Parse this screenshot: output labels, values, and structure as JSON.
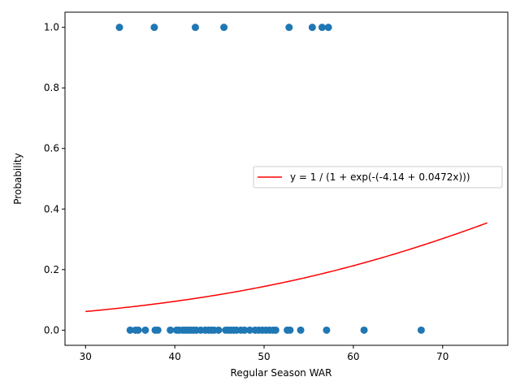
{
  "chart_data": {
    "type": "scatter",
    "title": "",
    "xlabel": "Regular Season WAR",
    "ylabel": "Probability",
    "xlim": [
      27.7,
      77.3
    ],
    "ylim": [
      -0.05,
      1.05
    ],
    "xticks": [
      30,
      40,
      50,
      60,
      70
    ],
    "yticks": [
      0.0,
      0.2,
      0.4,
      0.6,
      0.8,
      1.0
    ],
    "xtick_labels": [
      "30",
      "40",
      "50",
      "60",
      "70"
    ],
    "ytick_labels": [
      "0.0",
      "0.2",
      "0.4",
      "0.6",
      "0.8",
      "1.0"
    ],
    "grid": false,
    "legend_position": "center-right",
    "colors": {
      "points": "#1f77b4",
      "curve": "#ff0000"
    },
    "series": [
      {
        "type": "scatter",
        "points": [
          [
            33.8,
            1
          ],
          [
            37.7,
            1
          ],
          [
            42.3,
            1
          ],
          [
            45.5,
            1
          ],
          [
            52.8,
            1
          ],
          [
            55.4,
            1
          ],
          [
            56.5,
            1
          ],
          [
            57.2,
            1
          ],
          [
            35.0,
            0
          ],
          [
            35.6,
            0
          ],
          [
            35.9,
            0
          ],
          [
            36.7,
            0
          ],
          [
            37.8,
            0
          ],
          [
            38.1,
            0
          ],
          [
            39.5,
            0
          ],
          [
            40.2,
            0
          ],
          [
            40.5,
            0
          ],
          [
            40.9,
            0
          ],
          [
            41.2,
            0
          ],
          [
            41.5,
            0
          ],
          [
            41.8,
            0
          ],
          [
            42.1,
            0
          ],
          [
            42.4,
            0
          ],
          [
            42.9,
            0
          ],
          [
            43.4,
            0
          ],
          [
            43.8,
            0
          ],
          [
            44.1,
            0
          ],
          [
            44.4,
            0
          ],
          [
            44.9,
            0
          ],
          [
            45.7,
            0
          ],
          [
            46.0,
            0
          ],
          [
            46.3,
            0
          ],
          [
            46.6,
            0
          ],
          [
            46.9,
            0
          ],
          [
            47.4,
            0
          ],
          [
            47.8,
            0
          ],
          [
            48.4,
            0
          ],
          [
            49.0,
            0
          ],
          [
            49.4,
            0
          ],
          [
            49.8,
            0
          ],
          [
            50.2,
            0
          ],
          [
            50.6,
            0
          ],
          [
            51.0,
            0
          ],
          [
            51.3,
            0
          ],
          [
            52.6,
            0
          ],
          [
            52.9,
            0
          ],
          [
            54.1,
            0
          ],
          [
            57.0,
            0
          ],
          [
            61.2,
            0
          ],
          [
            67.6,
            0
          ]
        ]
      },
      {
        "type": "line",
        "name": "y = 1 / (1 + exp(-(-4.14 + 0.0472x)))",
        "intercept": -4.14,
        "slope": 0.0472,
        "x_range": [
          30,
          75
        ]
      }
    ]
  }
}
